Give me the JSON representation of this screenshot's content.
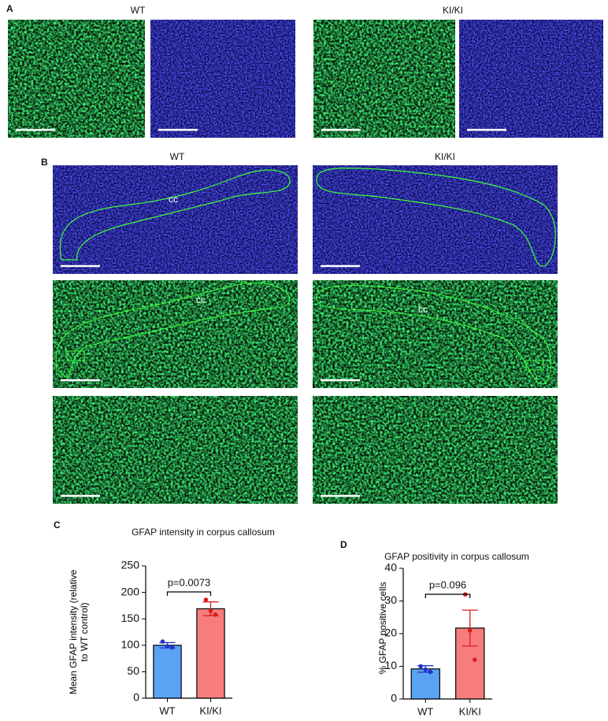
{
  "panels": {
    "a": {
      "label": "A",
      "titles": [
        "WT",
        "KI/KI"
      ]
    },
    "b": {
      "label": "B",
      "titles": [
        "WT",
        "KI/KI"
      ],
      "cc_labels": [
        "cc",
        "cc",
        "cc"
      ]
    }
  },
  "chart_data": [
    {
      "type": "bar",
      "panel_label": "C",
      "title": "GFAP intensity in corpus callosum",
      "y_label": "Mean GFAP intensity (relative to WT control)",
      "categories": [
        "WT",
        "KI/KI"
      ],
      "values": [
        100,
        169
      ],
      "errors": [
        5,
        13
      ],
      "points": [
        [
          107,
          98,
          96
        ],
        [
          186,
          165,
          158
        ]
      ],
      "colors": [
        "#5aa2f3",
        "#f77d7d"
      ],
      "point_colors": [
        "#2233cc",
        "#d81e1e"
      ],
      "ylim": [
        0,
        250
      ],
      "yticks": [
        0,
        50,
        100,
        150,
        200,
        250
      ],
      "annotation": "p=0.0073"
    },
    {
      "type": "bar",
      "panel_label": "D",
      "title": "GFAP positivity in corpus callosum",
      "y_label": "% GFAP positive cells",
      "categories": [
        "WT",
        "KI/KI"
      ],
      "values": [
        9.2,
        21.7
      ],
      "errors": [
        1,
        5.5
      ],
      "points": [
        [
          10,
          9,
          8.3
        ],
        [
          32,
          21,
          12
        ]
      ],
      "colors": [
        "#5aa2f3",
        "#f77d7d"
      ],
      "point_colors": [
        "#2233cc",
        "#d81e1e"
      ],
      "ylim": [
        0,
        40
      ],
      "yticks": [
        0,
        10,
        20,
        30,
        40
      ],
      "annotation": "p=0.096"
    }
  ]
}
